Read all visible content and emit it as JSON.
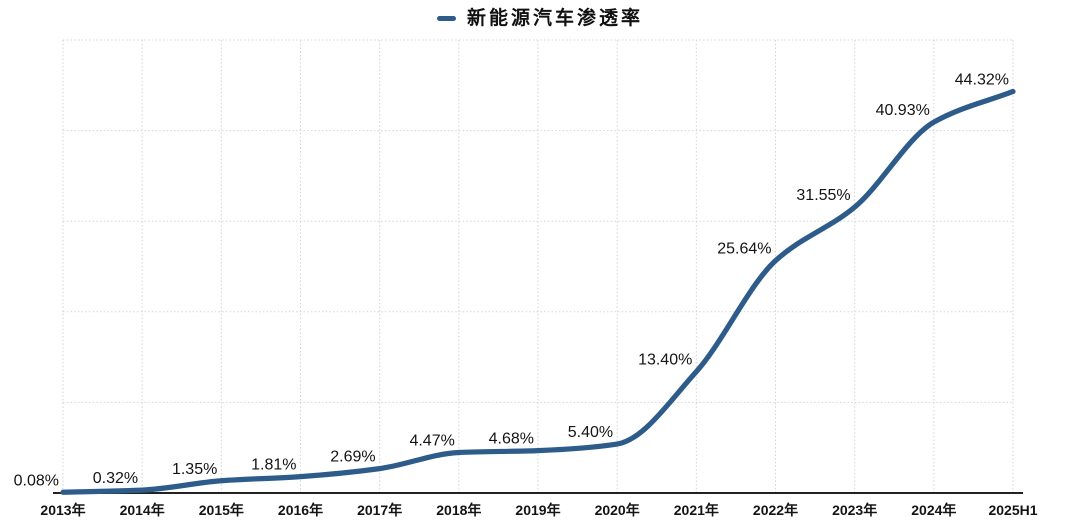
{
  "chart_data": {
    "type": "line",
    "title": "新能源汽车渗透率",
    "legend_position": "top-center",
    "grid": "dotted",
    "smooth": true,
    "line_color": "#2d5c8a",
    "categories": [
      "2013年",
      "2014年",
      "2015年",
      "2016年",
      "2017年",
      "2018年",
      "2019年",
      "2020年",
      "2021年",
      "2022年",
      "2023年",
      "2024年",
      "2025H1"
    ],
    "series": [
      {
        "name": "新能源汽车渗透率",
        "values": [
          0.08,
          0.32,
          1.35,
          1.81,
          2.69,
          4.47,
          4.68,
          5.4,
          13.4,
          25.64,
          31.55,
          40.93,
          44.32
        ]
      }
    ],
    "data_labels": [
      "0.08%",
      "0.32%",
      "1.35%",
      "1.81%",
      "2.69%",
      "4.47%",
      "4.68%",
      "5.40%",
      "13.40%",
      "25.64%",
      "31.55%",
      "40.93%",
      "44.32%"
    ],
    "xlabel": "",
    "ylabel": "",
    "ylim": [
      0,
      50
    ],
    "y_gridline_step": 10
  }
}
